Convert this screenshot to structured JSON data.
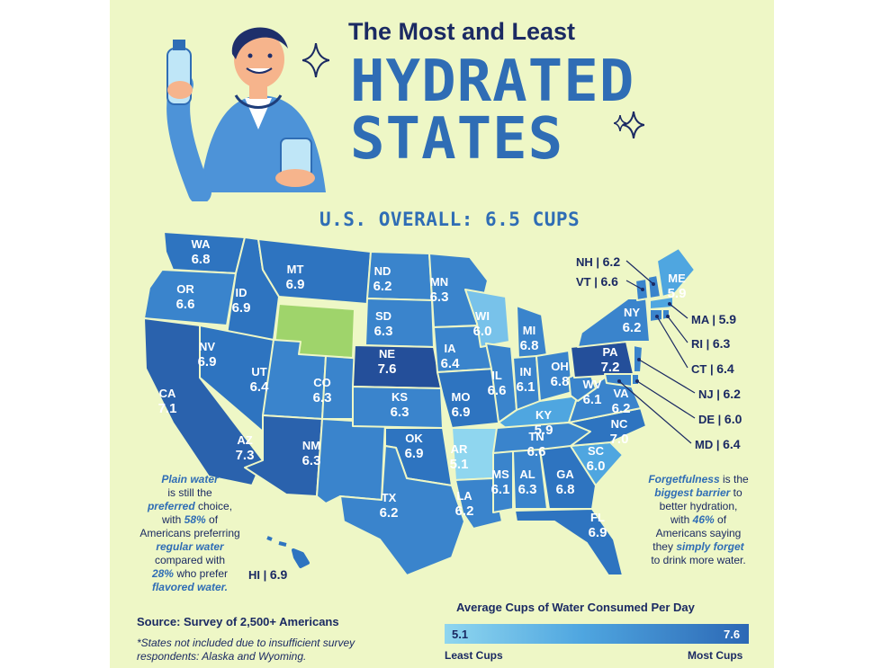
{
  "title": {
    "top": "The Most and Least",
    "line1": "HYDRATED",
    "line2": "STATES"
  },
  "overall": "U.S. OVERALL: 6.5 CUPS",
  "states": [
    {
      "abbr": "WA",
      "value": "6.8"
    },
    {
      "abbr": "OR",
      "value": "6.6"
    },
    {
      "abbr": "CA",
      "value": "7.1"
    },
    {
      "abbr": "ID",
      "value": "6.9"
    },
    {
      "abbr": "NV",
      "value": "6.9"
    },
    {
      "abbr": "MT",
      "value": "6.9"
    },
    {
      "abbr": "UT",
      "value": "6.4"
    },
    {
      "abbr": "AZ",
      "value": "7.3"
    },
    {
      "abbr": "CO",
      "value": "6.3"
    },
    {
      "abbr": "NM",
      "value": "6.3"
    },
    {
      "abbr": "ND",
      "value": "6.2"
    },
    {
      "abbr": "SD",
      "value": "6.3"
    },
    {
      "abbr": "NE",
      "value": "7.6"
    },
    {
      "abbr": "KS",
      "value": "6.3"
    },
    {
      "abbr": "OK",
      "value": "6.9"
    },
    {
      "abbr": "TX",
      "value": "6.2"
    },
    {
      "abbr": "MN",
      "value": "6.3"
    },
    {
      "abbr": "IA",
      "value": "6.4"
    },
    {
      "abbr": "MO",
      "value": "6.9"
    },
    {
      "abbr": "AR",
      "value": "5.1"
    },
    {
      "abbr": "LA",
      "value": "6.2"
    },
    {
      "abbr": "WI",
      "value": "6.0"
    },
    {
      "abbr": "IL",
      "value": "6.6"
    },
    {
      "abbr": "MI",
      "value": "6.8"
    },
    {
      "abbr": "IN",
      "value": "6.1"
    },
    {
      "abbr": "OH",
      "value": "6.8"
    },
    {
      "abbr": "KY",
      "value": "5.9"
    },
    {
      "abbr": "TN",
      "value": "6.6"
    },
    {
      "abbr": "MS",
      "value": "6.1"
    },
    {
      "abbr": "AL",
      "value": "6.3"
    },
    {
      "abbr": "GA",
      "value": "6.8"
    },
    {
      "abbr": "FL",
      "value": "6.9"
    },
    {
      "abbr": "SC",
      "value": "6.0"
    },
    {
      "abbr": "NC",
      "value": "7.0"
    },
    {
      "abbr": "VA",
      "value": "6.2"
    },
    {
      "abbr": "WV",
      "value": "6.1"
    },
    {
      "abbr": "PA",
      "value": "7.2"
    },
    {
      "abbr": "NY",
      "value": "6.2"
    },
    {
      "abbr": "ME",
      "value": "5.9"
    }
  ],
  "callouts": [
    {
      "abbr": "NH",
      "value": "6.2"
    },
    {
      "abbr": "VT",
      "value": "6.6"
    },
    {
      "abbr": "MA",
      "value": "5.9"
    },
    {
      "abbr": "RI",
      "value": "6.3"
    },
    {
      "abbr": "CT",
      "value": "6.4"
    },
    {
      "abbr": "NJ",
      "value": "6.2"
    },
    {
      "abbr": "DE",
      "value": "6.0"
    },
    {
      "abbr": "MD",
      "value": "6.4"
    },
    {
      "abbr": "HI",
      "value": "6.9"
    }
  ],
  "note_left": {
    "p1": "Plain water",
    "p2": "is still the",
    "p3": "preferred",
    "p4": "choice,",
    "p5": "with",
    "p6": "58%",
    "p7": "of",
    "p8": "Americans preferring",
    "p9": "regular water",
    "p10": "compared with",
    "p11": "28%",
    "p12": "who prefer",
    "p13": "flavored water."
  },
  "note_right": {
    "p1": "Forgetfulness",
    "p2": "is the",
    "p3": "biggest barrier",
    "p4": "to",
    "p5": "better hydration,",
    "p6": "with",
    "p7": "46%",
    "p8": "of",
    "p9": "Americans saying",
    "p10": "they",
    "p11": "simply forget",
    "p12": "to drink more water."
  },
  "source": "Source: Survey of 2,500+ Americans",
  "footnote": "*States not included due to insufficient survey respondents: Alaska and Wyoming.",
  "legend": {
    "title": "Average Cups of Water Consumed Per Day",
    "min": "5.1",
    "max": "7.6",
    "low_label": "Least Cups",
    "high_label": "Most Cups"
  },
  "colors": {
    "background": "#eef7c6",
    "title_dark": "#1b2a63",
    "title_blue": "#2f6db5",
    "wyoming": "#9fd46b",
    "scale_low": "#8fd6ef",
    "scale_high": "#2c68b5"
  }
}
